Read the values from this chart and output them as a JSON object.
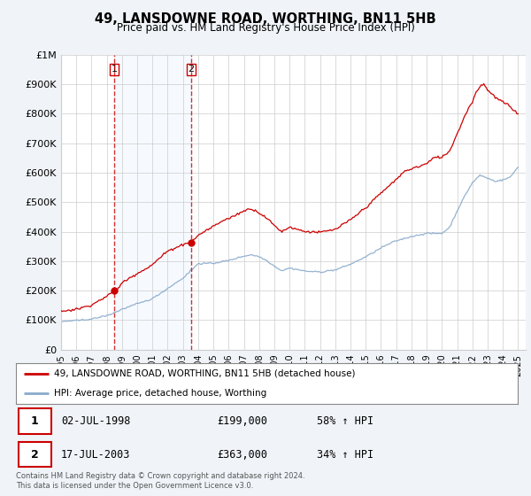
{
  "title": "49, LANSDOWNE ROAD, WORTHING, BN11 5HB",
  "subtitle": "Price paid vs. HM Land Registry's House Price Index (HPI)",
  "ylabel_ticks": [
    "£0",
    "£100K",
    "£200K",
    "£300K",
    "£400K",
    "£500K",
    "£600K",
    "£700K",
    "£800K",
    "£900K",
    "£1M"
  ],
  "ytick_values": [
    0,
    100000,
    200000,
    300000,
    400000,
    500000,
    600000,
    700000,
    800000,
    900000,
    1000000
  ],
  "ylim": [
    0,
    1000000
  ],
  "xlim_start": 1995.0,
  "xlim_end": 2025.5,
  "transaction1": {
    "date": 1998.5,
    "price": 199000,
    "label": "1"
  },
  "transaction2": {
    "date": 2003.54,
    "price": 363000,
    "label": "2"
  },
  "shade_color": "#ddeeff",
  "legend_line1": "49, LANSDOWNE ROAD, WORTHING, BN11 5HB (detached house)",
  "legend_line2": "HPI: Average price, detached house, Worthing",
  "table_row1": [
    "1",
    "02-JUL-1998",
    "£199,000",
    "58% ↑ HPI"
  ],
  "table_row2": [
    "2",
    "17-JUL-2003",
    "£363,000",
    "34% ↑ HPI"
  ],
  "footer": "Contains HM Land Registry data © Crown copyright and database right 2024.\nThis data is licensed under the Open Government Licence v3.0.",
  "line_color_red": "#cc0000",
  "line_color_blue": "#88aacc",
  "vline_color": "#cc0000",
  "background_color": "#f0f4f8",
  "plot_bg_color": "#ffffff",
  "grid_color": "#cccccc"
}
